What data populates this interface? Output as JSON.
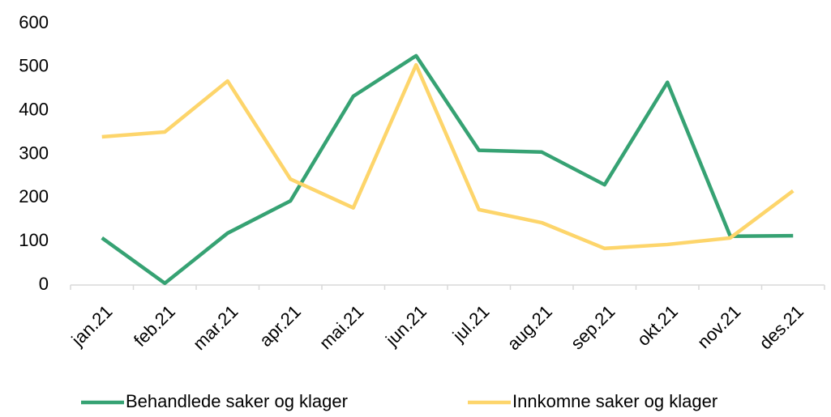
{
  "chart_data": {
    "type": "line",
    "categories": [
      "jan.21",
      "feb.21",
      "mar.21",
      "apr.21",
      "mai.21",
      "jun.21",
      "jul.21",
      "aug.21",
      "sep.21",
      "okt.21",
      "nov.21",
      "des.21"
    ],
    "series": [
      {
        "name": "Behandlede saker og klager",
        "color": "#36a273",
        "values": [
          108,
          4,
          119,
          193,
          433,
          526,
          309,
          305,
          230,
          465,
          112,
          113
        ]
      },
      {
        "name": "Innkomne saker og klager",
        "color": "#fdd56b",
        "values": [
          340,
          351,
          468,
          243,
          177,
          505,
          173,
          143,
          84,
          93,
          108,
          216
        ]
      }
    ],
    "ylim": [
      0,
      600
    ],
    "yticks": [
      0,
      100,
      200,
      300,
      400,
      500,
      600
    ],
    "grid": false,
    "legend": "bottom"
  }
}
